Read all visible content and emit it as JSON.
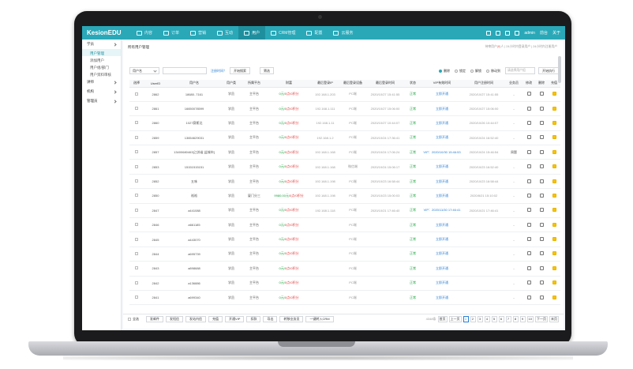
{
  "topbar": {
    "brand": "KesionEDU",
    "nav": [
      "内容",
      "订单",
      "营销",
      "互动",
      "用户",
      "CRM管理",
      "配置",
      "云服务"
    ],
    "active_nav": 4,
    "user": "admin",
    "links": [
      "前台",
      "关于"
    ]
  },
  "sidebar": {
    "groups": [
      {
        "label": "学员",
        "subs": [
          "用户管理",
          "添加用户",
          "用户组/部门",
          "用户资料审核"
        ],
        "active_sub": 0
      },
      {
        "label": "讲师",
        "subs": []
      },
      {
        "label": "机构",
        "subs": []
      },
      {
        "label": "管理员",
        "subs": []
      }
    ]
  },
  "main": {
    "breadcrumb": "所有用户管理",
    "crumb_right_prefix": "待审用户",
    "crumb_right_count": "0",
    "crumb_right_rest": "人 | 24小时内登录用户 | 24小时内注册用户",
    "toolbar": {
      "select": "用户名",
      "input_value": "",
      "link": "注册时间？",
      "search": "开始搜索",
      "filter": "筛选",
      "radios": [
        "删除",
        "锁定",
        "解锁",
        "移动到"
      ],
      "radio_on": 0,
      "select2": "请选择用户组",
      "exec": "开始执行"
    },
    "columns": [
      "选择",
      "UserID",
      "用户名",
      "用户类",
      "所属平台",
      "财富",
      "最后登录IP",
      "最后登录设备",
      "最后登录时间",
      "状态",
      "VIP有效时间",
      "用户注册时间",
      "业务员",
      "修改",
      "删除",
      "充值"
    ],
    "rows": [
      {
        "id": "2862",
        "name": "18680..7161",
        "type": "学员",
        "plat": "主平台",
        "rmb": "0",
        "pts": "0",
        "score": "0",
        "ip": "192.168.1.203",
        "dev": "PC端",
        "last": "2020/10/27 15:41:55",
        "status": "正常",
        "vip": "立即开通",
        "reg": "2020/10/27 15:41:55",
        "sales": "-"
      },
      {
        "id": "2861",
        "name": "16650078599",
        "type": "学员",
        "plat": "主平台",
        "rmb": "0",
        "pts": "0",
        "score": "0",
        "ip": "192.168.1.111",
        "dev": "PC端",
        "last": "2020/10/27 15:06:00",
        "status": "正常",
        "vip": "立即开通",
        "reg": "2020/10/27 15:06:00",
        "sales": "-"
      },
      {
        "id": "2860",
        "name": "1027赛斯达",
        "type": "学员",
        "plat": "主平台",
        "rmb": "0",
        "pts": "0",
        "score": "0",
        "ip": "192.168.1.11",
        "dev": "PC端",
        "last": "2020/10/27 10:44:07",
        "status": "正常",
        "vip": "立即开通",
        "reg": "2020/10/26 10:44:07",
        "sales": "-"
      },
      {
        "id": "2859",
        "name": "13654629031",
        "type": "学员",
        "plat": "主平台",
        "rmb": "0",
        "pts": "0",
        "score": "0",
        "ip": "192.168.1.2",
        "dev": "PC端",
        "last": "2020/10/24 17:36:41",
        "status": "正常",
        "vip": "立即开通",
        "reg": "2020/10/24 16:52:40",
        "sales": "-"
      },
      {
        "id": "2857",
        "name": "13400680463[江苏省,盐城市]",
        "type": "学员",
        "plat": "主平台",
        "rmb": "0",
        "pts": "0",
        "score": "0",
        "ip": "192.168.1.168",
        "dev": "PC端",
        "last": "2020/10/24 17:06:24",
        "status": "正常",
        "vip": "VIP：2020/10/30 15:46:53",
        "reg": "2020/10/24 15:46:54",
        "sales": "周题"
      },
      {
        "id": "2853",
        "name": "15151515151",
        "type": "学员",
        "plat": "主平台",
        "rmb": "0",
        "pts": "0",
        "score": "0",
        "ip": "192.168.1.168",
        "dev": "微信端",
        "last": "2020/10/24 15:06:17",
        "status": "正常",
        "vip": "立即开通",
        "reg": "2020/10/23 16:52:40",
        "sales": "-"
      },
      {
        "id": "2852",
        "name": "五味",
        "type": "学员",
        "plat": "主平台",
        "rmb": "0",
        "pts": "0",
        "score": "0",
        "ip": "192.168.1.198",
        "dev": "PC端",
        "last": "2020/10/23 16:58:44",
        "status": "正常",
        "vip": "立即开通",
        "reg": "2020/10/23 16:58:44",
        "sales": "-"
      },
      {
        "id": "2850",
        "name": "裕裕",
        "type": "学员",
        "plat": "厦门分三",
        "rmb": "9980.00",
        "pts": "0",
        "score": "0",
        "ip": "192.168.1.198",
        "dev": "PC端",
        "last": "2020/10/23 15:00:03",
        "status": "正常",
        "vip": "立即开通",
        "reg": "2020/8/21 15:10:02",
        "sales": "-"
      },
      {
        "id": "2847",
        "name": "a441088",
        "type": "学员",
        "plat": "主平台",
        "rmb": "0",
        "pts": "0",
        "score": "0",
        "ip": "192.168.1.118",
        "dev": "PC端",
        "last": "2020/10/21 17:46:40",
        "status": "正常",
        "vip": "VIP：2020/11/30 17:46:41",
        "reg": "2020/10/21 17:46:41",
        "sales": "-"
      },
      {
        "id": "2846",
        "name": "a661185",
        "type": "学员",
        "plat": "主平台",
        "rmb": "0",
        "pts": "0",
        "score": "0",
        "ip": "",
        "dev": "PC端",
        "last": "",
        "status": "正常",
        "vip": "立即开通",
        "reg": "",
        "sales": "-"
      },
      {
        "id": "2845",
        "name": "a443070",
        "type": "学员",
        "plat": "主平台",
        "rmb": "0",
        "pts": "0",
        "score": "0",
        "ip": "",
        "dev": "PC端",
        "last": "",
        "status": "正常",
        "vip": "立即开通",
        "reg": "",
        "sales": "-"
      },
      {
        "id": "2844",
        "name": "a695739",
        "type": "学员",
        "plat": "主平台",
        "rmb": "0",
        "pts": "0",
        "score": "0",
        "ip": "",
        "dev": "PC端",
        "last": "",
        "status": "正常",
        "vip": "立即开通",
        "reg": "",
        "sales": "-"
      },
      {
        "id": "2843",
        "name": "a898688",
        "type": "学员",
        "plat": "主平台",
        "rmb": "0",
        "pts": "0",
        "score": "0",
        "ip": "",
        "dev": "PC端",
        "last": "",
        "status": "正常",
        "vip": "立即开通",
        "reg": "",
        "sales": "-"
      },
      {
        "id": "2842",
        "name": "a136886",
        "type": "学员",
        "plat": "主平台",
        "rmb": "0",
        "pts": "0",
        "score": "0",
        "ip": "",
        "dev": "PC端",
        "last": "",
        "status": "正常",
        "vip": "立即开通",
        "reg": "",
        "sales": "-"
      },
      {
        "id": "2841",
        "name": "a699340",
        "type": "学员",
        "plat": "主平台",
        "rmb": "0",
        "pts": "0",
        "score": "0",
        "ip": "",
        "dev": "PC端",
        "last": "",
        "status": "正常",
        "vip": "立即开通",
        "reg": "",
        "sales": "-"
      }
    ],
    "money_suffix": [
      "元/",
      "点/",
      "积分"
    ]
  },
  "footer": {
    "check_all": "全选",
    "buttons": [
      "发邮件",
      "发短信",
      "发站内信",
      "充值",
      "开通VIP",
      "扣款",
      "导出",
      "转移业务员",
      "一键转入CRM"
    ],
    "total": "4348条",
    "pages": [
      "首页",
      "上一页",
      "1",
      "2",
      "3",
      "4",
      "5",
      "6",
      "7",
      "8",
      "9",
      "10",
      "下一页",
      "末页"
    ],
    "current_page": "1"
  }
}
